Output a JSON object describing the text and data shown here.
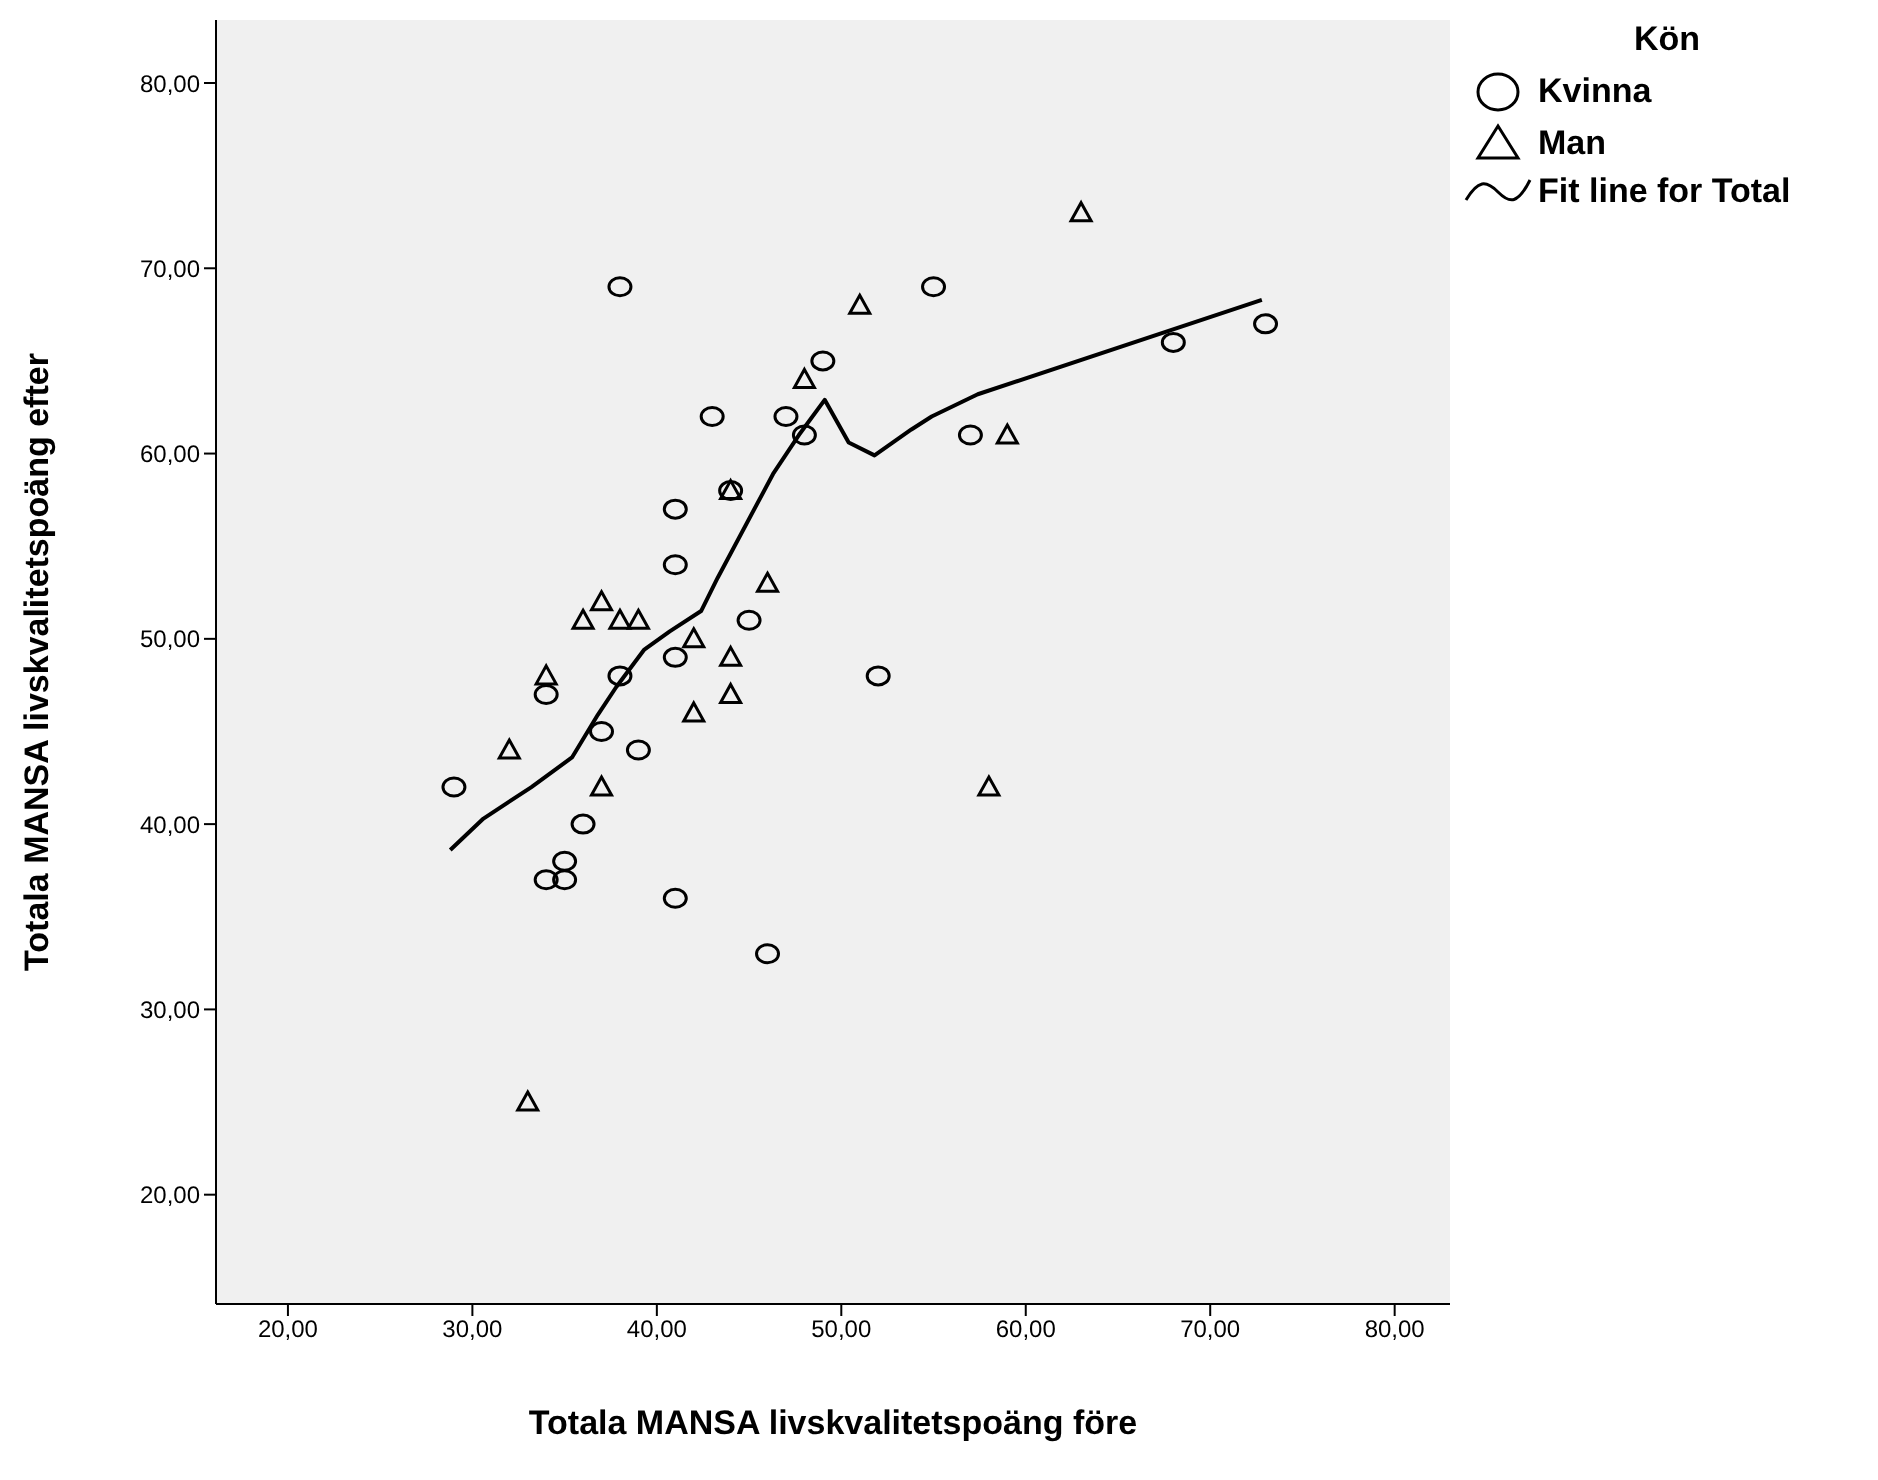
{
  "chart_data": {
    "type": "scatter",
    "xlabel": "Totala MANSA livskvalitetspoäng före",
    "ylabel": "Totala MANSA livskvalitetspoäng efter",
    "legend_title": "Kön",
    "legend": "right",
    "grid": false,
    "xlim": [
      16.1,
      83
    ],
    "ylim": [
      14.1,
      83.4
    ],
    "xticks": [
      {
        "value": 20,
        "label": "20,00"
      },
      {
        "value": 30,
        "label": "30,00"
      },
      {
        "value": 40,
        "label": "40,00"
      },
      {
        "value": 50,
        "label": "50,00"
      },
      {
        "value": 60,
        "label": "60,00"
      },
      {
        "value": 70,
        "label": "70,00"
      },
      {
        "value": 80,
        "label": "80,00"
      }
    ],
    "yticks": [
      {
        "value": 20,
        "label": "20,00"
      },
      {
        "value": 30,
        "label": "30,00"
      },
      {
        "value": 40,
        "label": "40,00"
      },
      {
        "value": 50,
        "label": "50,00"
      },
      {
        "value": 60,
        "label": "60,00"
      },
      {
        "value": 70,
        "label": "70,00"
      },
      {
        "value": 80,
        "label": "80,00"
      }
    ],
    "series": [
      {
        "name": "Kvinna",
        "marker": "circle",
        "color": "#000000",
        "x": [
          29,
          34,
          34,
          35,
          35,
          36,
          37,
          38,
          38,
          39,
          41,
          41,
          41,
          41,
          43,
          44,
          45,
          46,
          47,
          48,
          49,
          52,
          55,
          57,
          68,
          73
        ],
        "values": [
          42,
          47,
          37,
          38,
          37,
          40,
          45,
          69,
          48,
          44,
          57,
          54,
          49,
          36,
          62,
          58,
          51,
          33,
          62,
          61,
          65,
          48,
          69,
          61,
          66,
          67
        ]
      },
      {
        "name": "Man",
        "marker": "triangle",
        "color": "#000000",
        "x": [
          32,
          33,
          34,
          36,
          37,
          37,
          38,
          39,
          42,
          42,
          44,
          44,
          44,
          46,
          48,
          51,
          58,
          59,
          63
        ],
        "values": [
          44,
          25,
          48,
          51,
          52,
          42,
          51,
          51,
          50,
          46,
          58,
          49,
          47,
          53,
          64,
          68,
          42,
          61,
          73
        ]
      },
      {
        "name": "Fit line for Total",
        "type": "line",
        "marker": "none",
        "color": "#000000",
        "x": [
          28.8,
          30.6,
          33.2,
          35.4,
          36.8,
          37.8,
          39.3,
          40.7,
          42.4,
          43.3,
          46.3,
          47.7,
          49.1,
          50.4,
          51.8,
          53.8,
          54.9,
          57.4,
          72.8
        ],
        "values": [
          38.6,
          40.3,
          42.0,
          43.6,
          45.9,
          47.4,
          49.4,
          50.4,
          51.5,
          53.3,
          58.9,
          61.0,
          62.9,
          60.6,
          59.9,
          61.3,
          62.0,
          63.2,
          68.3
        ]
      }
    ]
  }
}
